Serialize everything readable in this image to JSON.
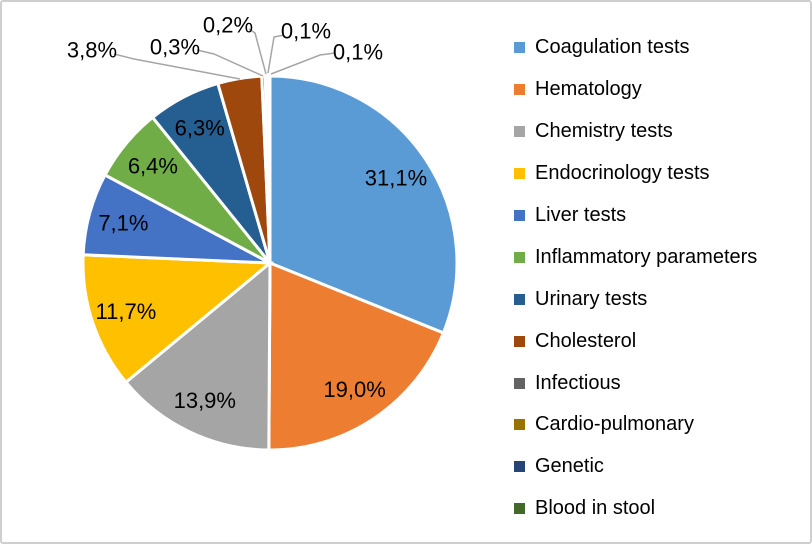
{
  "chart_data": {
    "type": "pie",
    "title": "",
    "legend_position": "right",
    "total": 100.0,
    "label_format": "percent-comma-decimal",
    "slices": [
      {
        "label": "Coagulation tests",
        "value": 31.1,
        "display": "31,1%",
        "color": "#5B9BD5",
        "label_placement": "inside"
      },
      {
        "label": "Hematology",
        "value": 19.0,
        "display": "19,0%",
        "color": "#ED7D31",
        "label_placement": "inside"
      },
      {
        "label": "Chemistry tests",
        "value": 13.9,
        "display": "13,9%",
        "color": "#A5A5A5",
        "label_placement": "inside"
      },
      {
        "label": "Endocrinology tests",
        "value": 11.7,
        "display": "11,7%",
        "color": "#FFC000",
        "label_placement": "inside"
      },
      {
        "label": "Liver tests",
        "value": 7.1,
        "display": "7,1%",
        "color": "#4472C4",
        "label_placement": "inside"
      },
      {
        "label": "Inflammatory parameters",
        "value": 6.4,
        "display": "6,4%",
        "color": "#70AD47",
        "label_placement": "inside"
      },
      {
        "label": "Urinary tests",
        "value": 6.3,
        "display": "6,3%",
        "color": "#255E91",
        "label_placement": "inside"
      },
      {
        "label": "Cholesterol",
        "value": 3.8,
        "display": "3,8%",
        "color": "#9E480E",
        "label_placement": "outside"
      },
      {
        "label": "Infectious",
        "value": 0.3,
        "display": "0,3%",
        "color": "#636363",
        "label_placement": "outside"
      },
      {
        "label": "Cardio-pulmonary",
        "value": 0.2,
        "display": "0,2%",
        "color": "#997300",
        "label_placement": "outside"
      },
      {
        "label": "Genetic",
        "value": 0.1,
        "display": "0,1%",
        "color": "#264478",
        "label_placement": "outside"
      },
      {
        "label": "Blood in stool",
        "value": 0.1,
        "display": "0,1%",
        "color": "#43682B",
        "label_placement": "outside"
      }
    ]
  }
}
